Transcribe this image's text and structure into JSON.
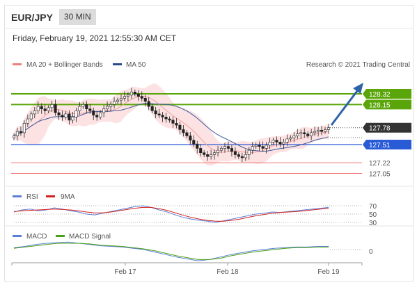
{
  "header": {
    "pair": "EUR/JPY",
    "period": "30 MIN",
    "datetime": "Friday, February 19, 2021 12:55:30 AM CET"
  },
  "legend": {
    "ma20": "MA 20 + Bollinger Bands",
    "ma50": "MA 50",
    "credit": "Research © 2021 Trading Central",
    "rsi": "RSI",
    "rsi_ma": "9MA",
    "macd": "MACD",
    "macd_signal": "MACD Signal"
  },
  "colors": {
    "resistance": "#5aa60a",
    "support": "#2a5bd7",
    "lower": "#f07a7a",
    "ma20": "#f0a0a0",
    "ma50": "#3a5a9a",
    "current": "#333333",
    "rsi": "#5c7fd4",
    "rsi_ma": "#d22020",
    "macd": "#5c7fd4",
    "macd_signal": "#4aa018",
    "arrow": "#2f62a8"
  },
  "chart_data": {
    "type": "candlestick",
    "title": "EUR/JPY 30 MIN",
    "x_ticks": [
      "Feb 17",
      "Feb 18",
      "Feb 19"
    ],
    "y_range": [
      126.9,
      128.62
    ],
    "price_levels": {
      "resistance": [
        128.32,
        128.15
      ],
      "current": 127.78,
      "pivot": 127.51,
      "support": [
        127.22,
        127.05
      ]
    },
    "close_series": [
      127.65,
      127.72,
      127.7,
      127.85,
      127.92,
      128.0,
      128.05,
      128.12,
      128.08,
      128.05,
      128.1,
      128.15,
      128.02,
      127.98,
      127.95,
      128.0,
      127.9,
      127.95,
      128.05,
      128.12,
      128.15,
      128.08,
      128.05,
      127.98,
      127.95,
      128.02,
      128.08,
      128.12,
      128.15,
      128.2,
      128.22,
      128.25,
      128.28,
      128.3,
      128.35,
      128.32,
      128.28,
      128.25,
      128.2,
      128.12,
      128.05,
      128.0,
      127.98,
      127.95,
      127.92,
      127.9,
      127.85,
      127.82,
      127.75,
      127.7,
      127.65,
      127.58,
      127.52,
      127.45,
      127.38,
      127.35,
      127.32,
      127.35,
      127.38,
      127.42,
      127.45,
      127.48,
      127.45,
      127.4,
      127.35,
      127.32,
      127.3,
      127.35,
      127.42,
      127.48,
      127.5,
      127.48,
      127.45,
      127.5,
      127.55,
      127.58,
      127.55,
      127.52,
      127.55,
      127.6,
      127.62,
      127.65,
      127.68,
      127.7,
      127.68,
      127.65,
      127.7,
      127.72,
      127.74,
      127.72,
      127.75,
      127.78
    ],
    "indicators": {
      "rsi_levels": [
        70,
        50,
        30
      ],
      "rsi": [
        55,
        60,
        62,
        58,
        60,
        65,
        62,
        58,
        55,
        50,
        48,
        52,
        56,
        60,
        64,
        68,
        70,
        66,
        60,
        55,
        48,
        42,
        38,
        35,
        33,
        30,
        34,
        38,
        42,
        46,
        50,
        52,
        55,
        54,
        56,
        58,
        60,
        62,
        64,
        66
      ],
      "rsi_ma": [
        56,
        58,
        59,
        60,
        61,
        62,
        61,
        60,
        58,
        55,
        53,
        53,
        55,
        58,
        61,
        64,
        66,
        66,
        63,
        59,
        53,
        47,
        42,
        38,
        35,
        33,
        33,
        35,
        38,
        42,
        46,
        49,
        52,
        54,
        55,
        56,
        58,
        60,
        62,
        64
      ],
      "macd_zero_label": "0",
      "macd": [
        0.03,
        0.05,
        0.08,
        0.1,
        0.11,
        0.12,
        0.1,
        0.08,
        0.06,
        0.05,
        0.04,
        0.02,
        0.0,
        -0.04,
        -0.08,
        -0.12,
        -0.15,
        -0.18,
        -0.16,
        -0.12,
        -0.08,
        -0.05,
        -0.02,
        0.0,
        0.02,
        0.03,
        0.04,
        0.04,
        0.05,
        0.05
      ],
      "macd_signal": [
        0.02,
        0.04,
        0.06,
        0.08,
        0.1,
        0.1,
        0.1,
        0.09,
        0.07,
        0.06,
        0.05,
        0.03,
        0.01,
        -0.02,
        -0.06,
        -0.1,
        -0.13,
        -0.16,
        -0.16,
        -0.14,
        -0.1,
        -0.07,
        -0.04,
        -0.02,
        0.0,
        0.02,
        0.03,
        0.03,
        0.04,
        0.04
      ]
    }
  }
}
